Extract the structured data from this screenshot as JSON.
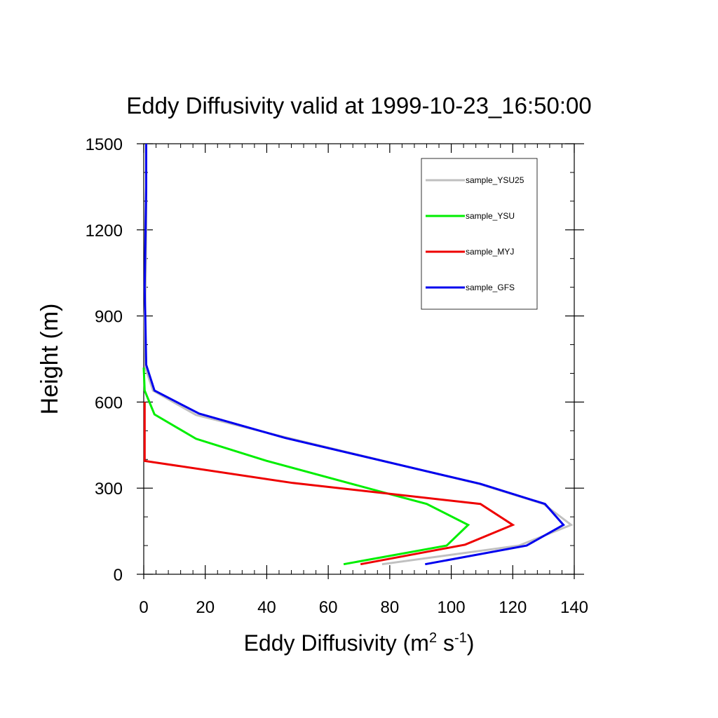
{
  "chart_data": {
    "type": "line",
    "title": "Eddy Diffusivity valid at 1999-10-23_16:50:00",
    "xlabel": {
      "base": "Eddy Diffusivity (m",
      "sup1": "2",
      "mid": " s",
      "sup2": "-1",
      "end": ")"
    },
    "ylabel": "Height (m)",
    "xlim": [
      0,
      140
    ],
    "ylim": [
      0,
      1500
    ],
    "x_ticks": [
      0,
      20,
      40,
      60,
      80,
      100,
      120,
      140
    ],
    "x_tick_labels": [
      "0",
      "20",
      "40",
      "60",
      "80",
      "100",
      "120",
      "140"
    ],
    "y_ticks": [
      0,
      300,
      600,
      900,
      1200,
      1500
    ],
    "y_tick_labels": [
      "0",
      "300",
      "600",
      "900",
      "1200",
      "1500"
    ],
    "legend_position": "top-right",
    "series": [
      {
        "name": "sample_YSU25",
        "color": "#c0c0c0",
        "x": [
          77.5,
          122,
          139,
          130,
          109,
          45,
          17,
          3,
          0.5,
          0.3,
          0.6,
          0.8,
          0.8,
          0.8
        ],
        "y": [
          35,
          100,
          172,
          245,
          315,
          480,
          555,
          640,
          720,
          900,
          1000,
          1200,
          1350,
          1500
        ]
      },
      {
        "name": "sample_YSU",
        "color": "#00ee00",
        "x": [
          65,
          98.5,
          105.5,
          92,
          78,
          40,
          17,
          3.5,
          0.3,
          0
        ],
        "y": [
          35,
          100,
          172,
          245,
          285,
          395,
          472,
          557,
          640,
          720
        ]
      },
      {
        "name": "sample_MYJ",
        "color": "#ee0000",
        "x": [
          70.5,
          104.5,
          120,
          109.5,
          48.5,
          0.3,
          0.3
        ],
        "y": [
          35,
          103,
          172,
          245,
          318,
          395,
          600
        ]
      },
      {
        "name": "sample_GFS",
        "color": "#0000ee",
        "x": [
          91.5,
          124.5,
          136.5,
          130.5,
          109.5,
          46,
          18,
          3.5,
          0.8,
          0.5,
          0.3,
          0.6,
          0.8,
          0.8
        ],
        "y": [
          35,
          100,
          172,
          245,
          315,
          475,
          560,
          640,
          730,
          900,
          1000,
          1200,
          1350,
          1500
        ]
      }
    ]
  }
}
